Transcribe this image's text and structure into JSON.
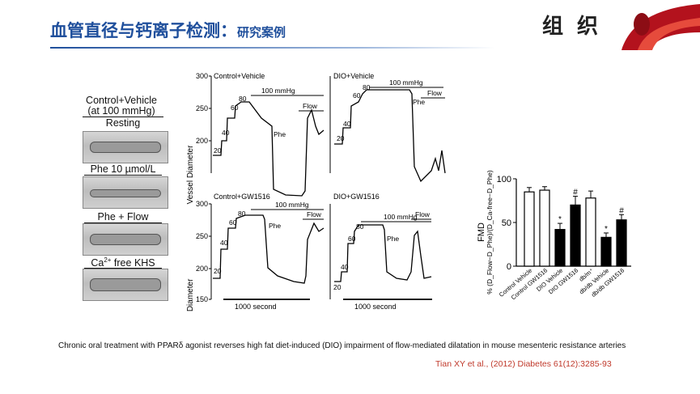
{
  "header": {
    "title": "血管直径与钙离子检测：",
    "subtitle": "研究案例",
    "corner": "组 织"
  },
  "left_panel": {
    "title_line1": "Control+Vehicle",
    "title_line2": "(at 100 mmHg)",
    "images": [
      {
        "label": "Resting"
      },
      {
        "label": "Phe 10 µmol/L"
      },
      {
        "label": "Phe + Flow"
      },
      {
        "label_prefix": "Ca",
        "label_sup": "2+",
        "label_suffix": " free KHS"
      }
    ]
  },
  "traces": {
    "ylabel": "Vessel Diameter",
    "y_ticks": [
      "300",
      "250",
      "200",
      "150"
    ],
    "scale_label": "1000 second",
    "panels": [
      {
        "title": "Control+Vehicle",
        "pressure": "100 mmHg",
        "steps": [
          "20",
          "40",
          "60",
          "80"
        ],
        "phe": "Phe",
        "flow": "Flow"
      },
      {
        "title": "DIO+Vehicle",
        "pressure": "100 mmHg",
        "steps": [
          "20",
          "40",
          "60",
          "80"
        ],
        "phe": "Phe",
        "flow": "Flow"
      },
      {
        "title": "Control+GW1516",
        "pressure": "100 mmHg",
        "steps": [
          "20",
          "40",
          "60",
          "80"
        ],
        "phe": "Phe",
        "flow": "Flow"
      },
      {
        "title": "DIO+GW1516",
        "pressure": "100 mmHg",
        "steps": [
          "20",
          "40",
          "60",
          "80"
        ],
        "phe": "Phe",
        "flow": "Flow"
      }
    ]
  },
  "bar_chart": {
    "ylabel_main": "FMD",
    "ylabel_formula": "% (D_Flow−D_Phe)/(D_Ca-free−D_Phe)",
    "ylim": [
      0,
      100
    ],
    "y_ticks": [
      "100",
      "50",
      "0"
    ],
    "categories": [
      "Control Vehicle",
      "Control GW1516",
      "DIO Vehicle",
      "DIO GW1516",
      "db/m⁺",
      "db/db Vehicle",
      "db/db GW1516"
    ],
    "values": [
      85,
      87,
      42,
      70,
      78,
      33,
      53
    ],
    "errors": [
      5,
      4,
      7,
      10,
      8,
      5,
      6
    ],
    "fills": [
      "#ffffff",
      "#ffffff",
      "#000000",
      "#000000",
      "#ffffff",
      "#000000",
      "#000000"
    ],
    "marks": [
      "",
      "",
      "*",
      "#",
      "",
      "*",
      "#"
    ]
  },
  "caption": "Chronic oral treatment with PPARδ agonist reverses high fat diet-induced (DIO) impairment of flow-mediated dilatation in mouse mesenteric resistance arteries",
  "citation": "Tian XY et al., (2012) Diabetes 61(12):3285-93"
}
